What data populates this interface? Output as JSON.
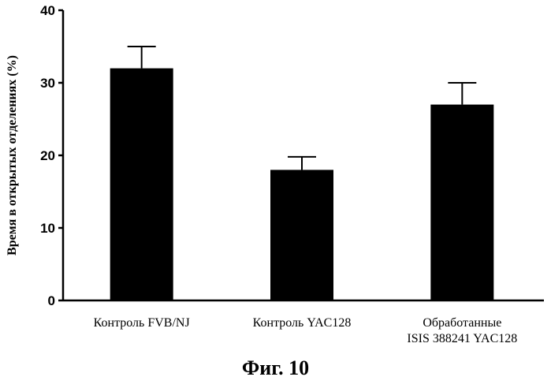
{
  "figure": {
    "caption": "Фиг. 10"
  },
  "chart_data": {
    "type": "bar",
    "categories": [
      [
        "Контроль FVB/NJ"
      ],
      [
        "Контроль YAC128"
      ],
      [
        "Обработанные",
        "ISIS 388241 YAC128"
      ]
    ],
    "values": [
      32,
      18,
      27
    ],
    "error_upper": [
      35,
      19.8,
      30
    ],
    "ylabel": "Время в открытых отделениях (%)",
    "ylim": [
      0,
      40
    ],
    "yticks": [
      0,
      10,
      20,
      30,
      40
    ],
    "grid": false,
    "bar_color": "#000000"
  }
}
